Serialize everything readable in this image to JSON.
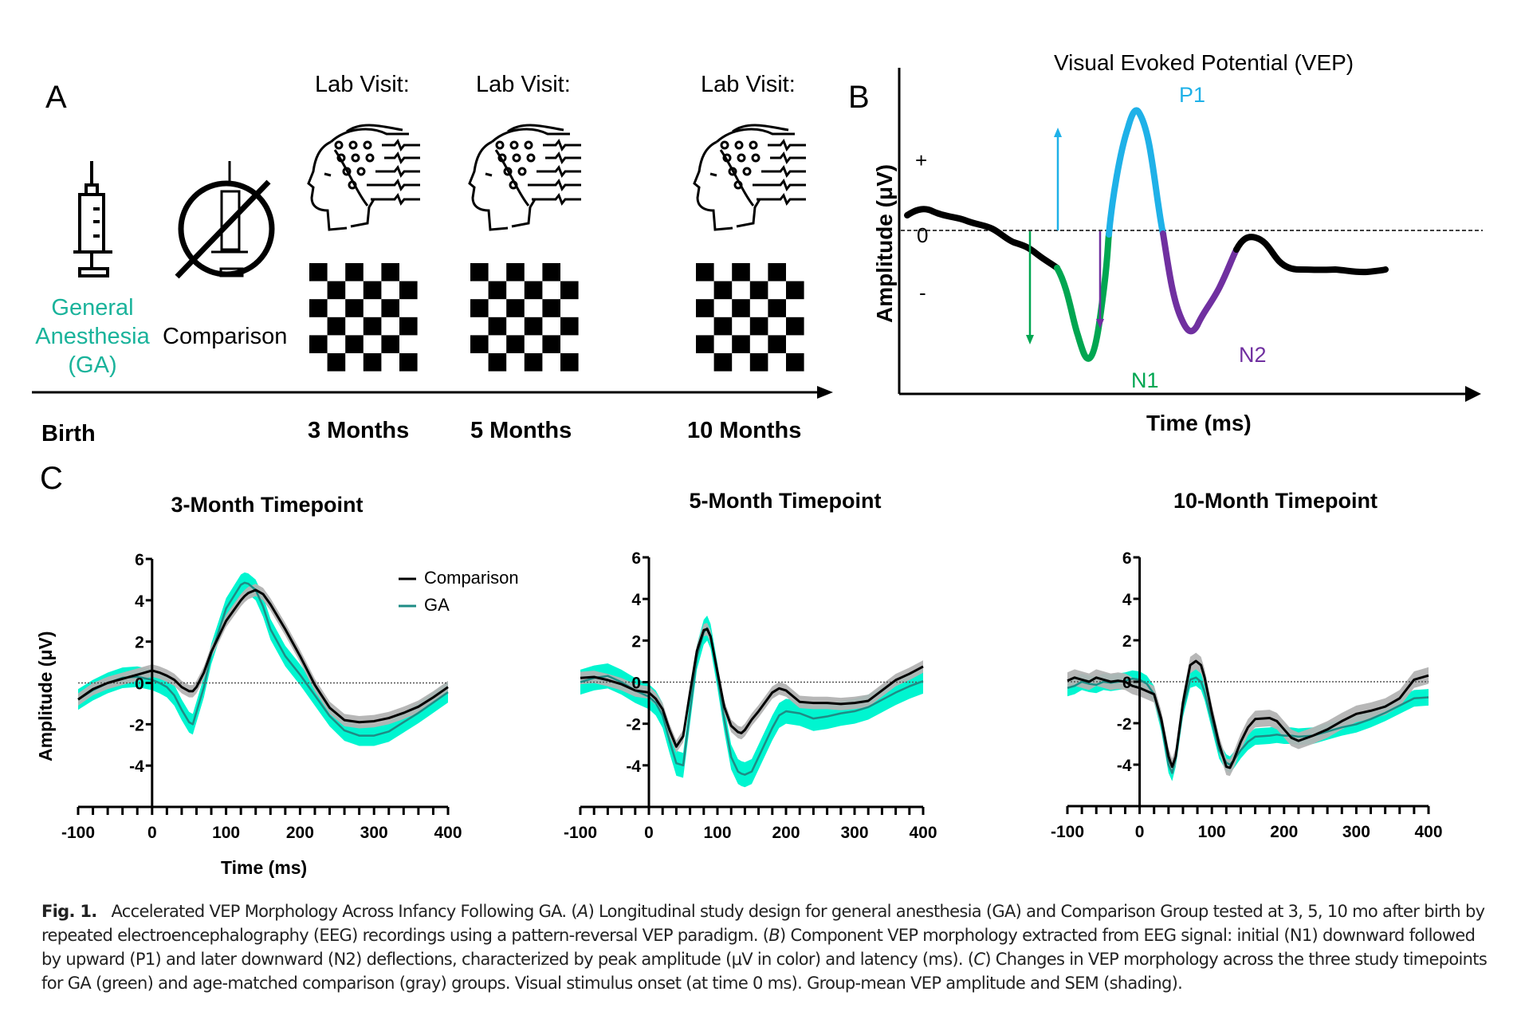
{
  "figure": {
    "panel_letters": {
      "a": "A",
      "b": "B",
      "c": "C"
    },
    "colors": {
      "ga_text": "#1ab39b",
      "ga_band": "#00f5d0",
      "ga_line": "#1e8c85",
      "comparison_band": "#b3b3b3",
      "comparison_line": "#000000",
      "n1": "#00a651",
      "p1": "#1fb1e8",
      "n2": "#7030a0"
    }
  },
  "panel_a": {
    "groups": [
      {
        "label_lines": [
          "General",
          "Anesthesia",
          "(GA)"
        ],
        "icon": "syringe-icon"
      },
      {
        "label_lines": [
          "Comparison"
        ],
        "icon": "no-syringe-icon"
      }
    ],
    "timeline": {
      "start_label": "Birth",
      "visits": [
        {
          "header": "Lab Visit:",
          "label": "3 Months",
          "icons": [
            "eeg-head-icon",
            "checkerboard-icon"
          ]
        },
        {
          "header": "Lab Visit:",
          "label": "5 Months",
          "icons": [
            "eeg-head-icon",
            "checkerboard-icon"
          ]
        },
        {
          "header": "Lab Visit:",
          "label": "10 Months",
          "icons": [
            "eeg-head-icon",
            "checkerboard-icon"
          ]
        }
      ]
    }
  },
  "panel_b": {
    "title": "Visual Evoked Potential (VEP)",
    "ylabel": "Amplitude (μV)",
    "xlabel": "Time (ms)",
    "y_ticks": [
      "+",
      "0",
      "-"
    ],
    "components": [
      {
        "name": "N1",
        "direction": "down"
      },
      {
        "name": "P1",
        "direction": "up"
      },
      {
        "name": "N2",
        "direction": "down"
      }
    ]
  },
  "chart_data": [
    {
      "type": "line",
      "title": "3-Month Timepoint",
      "xlabel": "Time (ms)",
      "ylabel": "Amplitude (μV)",
      "xlim": [
        -100,
        400
      ],
      "ylim": [
        -6,
        6
      ],
      "x_ticks": [
        "-100",
        "0",
        "100",
        "200",
        "300",
        "400"
      ],
      "y_ticks": [
        "6",
        "4",
        "2",
        "0",
        "-2",
        "-4"
      ],
      "legend": {
        "position": "top-right",
        "entries": [
          "Comparison",
          "GA"
        ]
      },
      "zero_line": true,
      "x": [
        -100,
        -80,
        -60,
        -40,
        -20,
        0,
        10,
        20,
        30,
        40,
        50,
        55,
        60,
        70,
        80,
        100,
        120,
        125,
        130,
        140,
        150,
        160,
        180,
        200,
        220,
        240,
        260,
        280,
        300,
        320,
        340,
        360,
        380,
        400
      ],
      "series": [
        {
          "name": "Comparison",
          "values": [
            -0.8,
            -0.3,
            0.0,
            0.2,
            0.4,
            0.6,
            0.5,
            0.35,
            0.15,
            -0.2,
            -0.4,
            -0.4,
            -0.2,
            0.5,
            1.5,
            3.0,
            4.0,
            4.2,
            4.35,
            4.5,
            4.3,
            3.8,
            2.6,
            1.3,
            -0.1,
            -1.2,
            -1.8,
            -1.9,
            -1.85,
            -1.7,
            -1.45,
            -1.15,
            -0.7,
            -0.2
          ],
          "sem": 0.3
        },
        {
          "name": "GA",
          "values": [
            -0.8,
            -0.35,
            0.0,
            0.25,
            0.3,
            0.15,
            0.0,
            -0.2,
            -0.6,
            -1.3,
            -1.9,
            -2.0,
            -1.4,
            -0.2,
            1.4,
            3.6,
            4.75,
            4.85,
            4.8,
            4.5,
            3.7,
            2.6,
            1.3,
            0.4,
            -0.6,
            -1.6,
            -2.3,
            -2.55,
            -2.55,
            -2.35,
            -1.9,
            -1.45,
            -0.95,
            -0.45
          ],
          "sem": 0.5
        }
      ]
    },
    {
      "type": "line",
      "title": "5-Month Timepoint",
      "xlabel": "",
      "ylabel": "",
      "xlim": [
        -100,
        400
      ],
      "ylim": [
        -6,
        6
      ],
      "x_ticks": [
        "-100",
        "0",
        "100",
        "200",
        "300",
        "400"
      ],
      "y_ticks": [
        "6",
        "4",
        "2",
        "0",
        "-2",
        "-4"
      ],
      "zero_line": true,
      "x": [
        -100,
        -80,
        -60,
        -40,
        -20,
        0,
        10,
        20,
        30,
        40,
        50,
        60,
        70,
        80,
        85,
        90,
        100,
        110,
        120,
        130,
        135,
        140,
        150,
        160,
        180,
        190,
        200,
        220,
        240,
        260,
        280,
        300,
        320,
        340,
        360,
        380,
        400
      ],
      "series": [
        {
          "name": "Comparison",
          "values": [
            0.2,
            0.25,
            0.1,
            -0.1,
            -0.4,
            -0.5,
            -0.8,
            -1.3,
            -2.3,
            -3.1,
            -2.6,
            -0.5,
            1.5,
            2.5,
            2.55,
            2.2,
            0.5,
            -1.2,
            -2.1,
            -2.4,
            -2.45,
            -2.3,
            -1.8,
            -1.4,
            -0.5,
            -0.3,
            -0.4,
            -0.95,
            -1.0,
            -1.0,
            -1.05,
            -1.0,
            -0.9,
            -0.4,
            0.1,
            0.4,
            0.75
          ],
          "sem": 0.3
        },
        {
          "name": "GA",
          "values": [
            0.0,
            0.2,
            0.3,
            0.0,
            -0.4,
            -0.7,
            -1.0,
            -1.6,
            -2.8,
            -3.9,
            -4.0,
            -1.4,
            1.2,
            2.4,
            2.6,
            2.2,
            0.3,
            -1.8,
            -3.6,
            -4.3,
            -4.4,
            -4.45,
            -4.3,
            -3.6,
            -2.2,
            -1.6,
            -1.4,
            -1.5,
            -1.75,
            -1.65,
            -1.5,
            -1.4,
            -1.2,
            -0.85,
            -0.5,
            -0.2,
            0.05
          ],
          "sem": 0.6
        }
      ]
    },
    {
      "type": "line",
      "title": "10-Month Timepoint",
      "xlabel": "",
      "ylabel": "",
      "xlim": [
        -100,
        400
      ],
      "ylim": [
        -6,
        6
      ],
      "x_ticks": [
        "-100",
        "0",
        "100",
        "200",
        "300",
        "400"
      ],
      "y_ticks": [
        "6",
        "4",
        "2",
        "0",
        "-2",
        "-4"
      ],
      "zero_line": true,
      "x": [
        -100,
        -90,
        -80,
        -70,
        -60,
        -50,
        -40,
        -30,
        -20,
        -10,
        0,
        10,
        20,
        30,
        40,
        45,
        50,
        60,
        70,
        78,
        85,
        90,
        100,
        110,
        120,
        125,
        130,
        140,
        150,
        160,
        180,
        190,
        200,
        210,
        220,
        240,
        260,
        280,
        300,
        320,
        340,
        360,
        380,
        400
      ],
      "series": [
        {
          "name": "Comparison",
          "values": [
            0.05,
            0.2,
            0.1,
            0.0,
            0.2,
            0.1,
            0.0,
            0.05,
            0.0,
            -0.2,
            -0.3,
            -0.45,
            -0.6,
            -1.8,
            -3.6,
            -4.1,
            -3.6,
            -1.0,
            0.8,
            1.0,
            0.8,
            0.2,
            -1.5,
            -3.0,
            -4.1,
            -4.15,
            -3.8,
            -2.9,
            -2.2,
            -1.8,
            -1.75,
            -1.9,
            -2.3,
            -2.7,
            -2.85,
            -2.6,
            -2.3,
            -1.9,
            -1.55,
            -1.4,
            -1.2,
            -0.8,
            0.1,
            0.3
          ],
          "sem": 0.4
        },
        {
          "name": "GA",
          "values": [
            -0.3,
            -0.2,
            0.0,
            -0.1,
            -0.15,
            0.0,
            -0.05,
            0.0,
            0.05,
            0.15,
            0.1,
            -0.1,
            -0.6,
            -2.0,
            -4.0,
            -4.4,
            -3.7,
            -1.3,
            0.1,
            0.2,
            0.0,
            -0.5,
            -1.9,
            -3.3,
            -3.9,
            -4.0,
            -3.8,
            -3.3,
            -2.9,
            -2.65,
            -2.6,
            -2.55,
            -2.6,
            -2.6,
            -2.65,
            -2.6,
            -2.4,
            -2.2,
            -2.05,
            -1.8,
            -1.5,
            -1.15,
            -0.8,
            -0.75
          ],
          "sem": 0.4
        }
      ]
    }
  ],
  "caption": {
    "fig_label": "Fig. 1.",
    "title": "Accelerated VEP Morphology Across Infancy Following GA.",
    "parts": [
      {
        "marker": "A",
        "text": "Longitudinal study design for general anesthesia (GA) and Comparison Group tested at 3, 5, 10 mo after birth by repeated electroencephalography (EEG) recordings using a pattern-reversal VEP paradigm."
      },
      {
        "marker": "B",
        "text": "Component VEP morphology extracted from EEG signal: initial (N1) downward followed by upward (P1) and later downward (N2) deflections, characterized by peak amplitude (μV in color) and latency (ms)."
      },
      {
        "marker": "C",
        "text": "Changes in VEP morphology across the three study timepoints for GA (green) and age-matched comparison (gray) groups. Visual stimulus onset (at time 0 ms). Group-mean VEP amplitude and SEM (shading)."
      }
    ]
  }
}
